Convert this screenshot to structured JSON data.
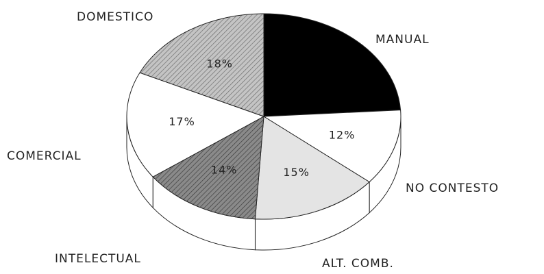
{
  "chart_data": {
    "type": "pie3d",
    "categories": [
      "MANUAL",
      "NO CONTESTO",
      "ALT. COMB.",
      "INTELECTUAL",
      "COMERCIAL",
      "DOMESTICO"
    ],
    "values": [
      24,
      12,
      15,
      14,
      17,
      18
    ],
    "value_labels": [
      null,
      "12%",
      "15%",
      "14%",
      "17%",
      "18%"
    ],
    "colors": [
      "#000000",
      "#ffffff",
      "#e4e4e4",
      "#8a8a8a",
      "#ffffff",
      "#c4c4c4"
    ]
  }
}
